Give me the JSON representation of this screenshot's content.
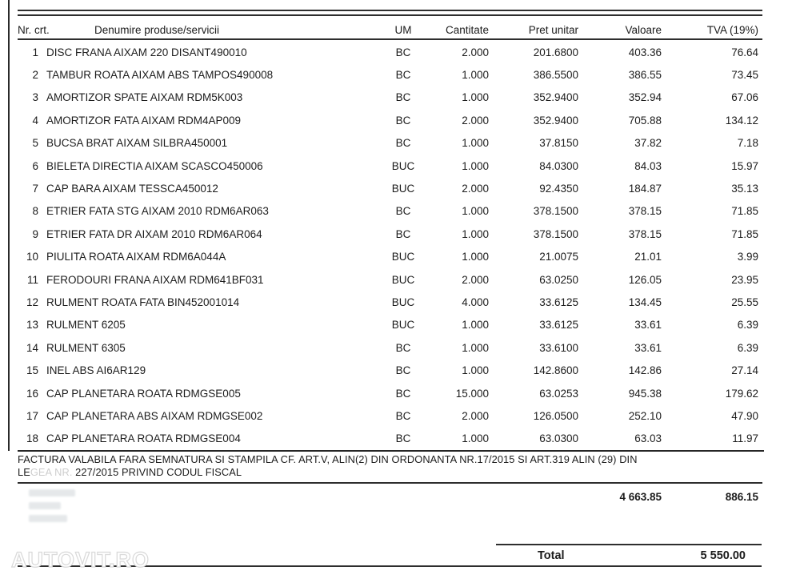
{
  "document": {
    "header": {
      "nr": "Nr. crt.",
      "name": "Denumire produse/servicii",
      "um": "UM",
      "qty": "Cantitate",
      "unit_price": "Pret unitar",
      "value": "Valoare",
      "vat": "TVA (19%)"
    },
    "rows": [
      {
        "nr": "1",
        "name": "DISC FRANA AIXAM 220 DISANT490010",
        "um": "BC",
        "qty": "2.000",
        "price": "201.6800",
        "value": "403.36",
        "vat": "76.64"
      },
      {
        "nr": "2",
        "name": "TAMBUR ROATA AIXAM ABS TAMPOS490008",
        "um": "BC",
        "qty": "1.000",
        "price": "386.5500",
        "value": "386.55",
        "vat": "73.45"
      },
      {
        "nr": "3",
        "name": "AMORTIZOR SPATE AIXAM RDM5K003",
        "um": "BC",
        "qty": "1.000",
        "price": "352.9400",
        "value": "352.94",
        "vat": "67.06"
      },
      {
        "nr": "4",
        "name": "AMORTIZOR FATA AIXAM RDM4AP009",
        "um": "BC",
        "qty": "2.000",
        "price": "352.9400",
        "value": "705.88",
        "vat": "134.12"
      },
      {
        "nr": "5",
        "name": "BUCSA BRAT AIXAM SILBRA450001",
        "um": "BC",
        "qty": "1.000",
        "price": "37.8150",
        "value": "37.82",
        "vat": "7.18"
      },
      {
        "nr": "6",
        "name": "BIELETA DIRECTIA AIXAM SCASCO450006",
        "um": "BUC",
        "qty": "1.000",
        "price": "84.0300",
        "value": "84.03",
        "vat": "15.97"
      },
      {
        "nr": "7",
        "name": "CAP BARA AIXAM TESSCA450012",
        "um": "BUC",
        "qty": "2.000",
        "price": "92.4350",
        "value": "184.87",
        "vat": "35.13"
      },
      {
        "nr": "8",
        "name": "ETRIER FATA STG AIXAM 2010 RDM6AR063",
        "um": "BC",
        "qty": "1.000",
        "price": "378.1500",
        "value": "378.15",
        "vat": "71.85"
      },
      {
        "nr": "9",
        "name": "ETRIER FATA DR AIXAM 2010 RDM6AR064",
        "um": "BC",
        "qty": "1.000",
        "price": "378.1500",
        "value": "378.15",
        "vat": "71.85"
      },
      {
        "nr": "10",
        "name": "PIULITA ROATA AIXAM RDM6A044A",
        "um": "BUC",
        "qty": "1.000",
        "price": "21.0075",
        "value": "21.01",
        "vat": "3.99"
      },
      {
        "nr": "11",
        "name": "FERODOURI FRANA AIXAM RDM641BF031",
        "um": "BUC",
        "qty": "2.000",
        "price": "63.0250",
        "value": "126.05",
        "vat": "23.95"
      },
      {
        "nr": "12",
        "name": "RULMENT ROATA FATA BIN452001014",
        "um": "BUC",
        "qty": "4.000",
        "price": "33.6125",
        "value": "134.45",
        "vat": "25.55"
      },
      {
        "nr": "13",
        "name": "RULMENT 6205",
        "um": "BUC",
        "qty": "1.000",
        "price": "33.6125",
        "value": "33.61",
        "vat": "6.39"
      },
      {
        "nr": "14",
        "name": "RULMENT 6305",
        "um": "BC",
        "qty": "1.000",
        "price": "33.6100",
        "value": "33.61",
        "vat": "6.39"
      },
      {
        "nr": "15",
        "name": "INEL ABS AI6AR129",
        "um": "BC",
        "qty": "1.000",
        "price": "142.8600",
        "value": "142.86",
        "vat": "27.14"
      },
      {
        "nr": "16",
        "name": "CAP PLANETARA ROATA RDMGSE005",
        "um": "BC",
        "qty": "15.000",
        "price": "63.0253",
        "value": "945.38",
        "vat": "179.62"
      },
      {
        "nr": "17",
        "name": "CAP PLANETARA ABS AIXAM RDMGSE002",
        "um": "BC",
        "qty": "2.000",
        "price": "126.0500",
        "value": "252.10",
        "vat": "47.90"
      },
      {
        "nr": "18",
        "name": "CAP PLANETARA ROATA RDMGSE004",
        "um": "BC",
        "qty": "1.000",
        "price": "63.0300",
        "value": "63.03",
        "vat": "11.97"
      }
    ],
    "footer_note": {
      "line1": "FACTURA VALABILA FARA SEMNATURA SI STAMPILA CF. ART.V, ALIN(2) DIN ORDONANTA NR.17/2015 SI ART.319 ALIN (29) DIN",
      "line2_start": "LE",
      "line2_redacted": "GEA NR.",
      "line2_rest": " 227/2015 PRIVIND CODUL FISCAL"
    },
    "totals": {
      "subtotal_value": "4 663.85",
      "subtotal_vat": "886.15",
      "total_label": "Total",
      "total_value": "5 550.00"
    },
    "watermark": "AUTOVIT.RO"
  }
}
